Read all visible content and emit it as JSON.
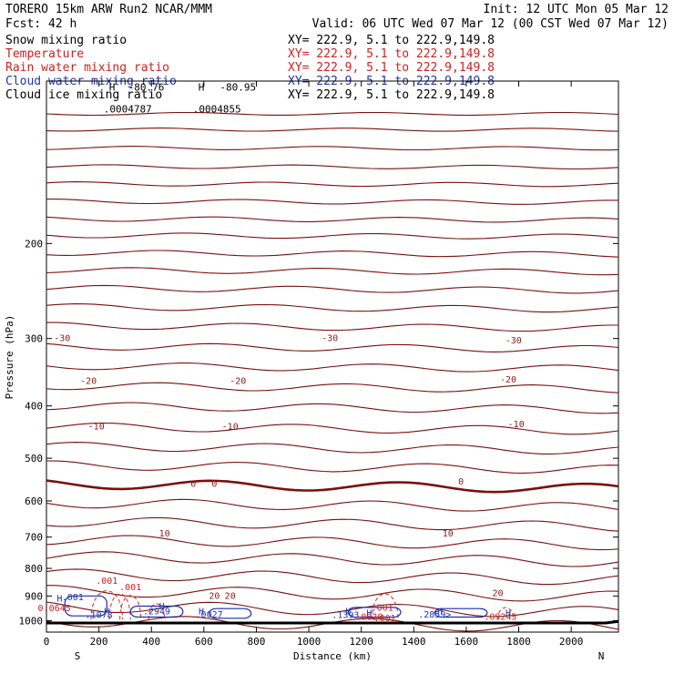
{
  "header": {
    "model": "TORERO  15km ARW   Run2   NCAR/MMM",
    "init": "Init: 12 UTC Mon 05 Mar 12",
    "fcst": "Fcst:   42 h",
    "valid": "Valid: 06 UTC Wed 07 Mar 12 (00 CST Wed 07 Mar 12)"
  },
  "legend": [
    {
      "name": "Snow mixing ratio",
      "xy": "XY= 222.9,  5.1 to 222.9,149.8",
      "color": "#000000"
    },
    {
      "name": "Temperature",
      "xy": "XY= 222.9,  5.1 to 222.9,149.8",
      "color": "#cc2222"
    },
    {
      "name": "Rain water mixing ratio",
      "xy": "XY= 222.9,  5.1 to 222.9,149.8",
      "color": "#cc2222"
    },
    {
      "name": "Cloud water mixing ratio",
      "xy": "XY= 222.9,  5.1 to 222.9,149.8",
      "color": "#2233aa"
    },
    {
      "name": "Cloud ice mixing ratio",
      "xy": "XY= 222.9,  5.1 to 222.9,149.8",
      "color": "#000000"
    }
  ],
  "chart_data": {
    "type": "line",
    "xlabel": "Distance (km)",
    "ylabel": "Pressure (hPa)",
    "xlim": [
      0,
      2180
    ],
    "ylim": [
      1050,
      100
    ],
    "yscale": "log",
    "xticks": [
      0,
      200,
      400,
      600,
      800,
      1000,
      1200,
      1400,
      1600,
      1800,
      2000
    ],
    "yticks": [
      200,
      300,
      400,
      500,
      600,
      700,
      800,
      900,
      1000
    ],
    "x_end_labels": [
      "S",
      "N"
    ],
    "colors": {
      "temperature": "#7a1010",
      "rain": "#dd2222",
      "cloud_water": "#1a2fb0",
      "terrain": "#000000"
    },
    "temperature_isotherms_pressure": [
      115,
      123,
      133,
      144,
      155,
      167,
      180,
      193,
      208,
      224,
      242,
      262,
      284,
      310,
      337,
      367,
      400,
      437,
      475,
      515,
      558,
      605,
      655,
      708,
      760,
      820,
      880,
      940,
      1000
    ],
    "temperature_labels": [
      {
        "text": "-30",
        "x": 60,
        "p": 300
      },
      {
        "text": "-30",
        "x": 1080,
        "p": 300
      },
      {
        "text": "-30",
        "x": 1780,
        "p": 303
      },
      {
        "text": "-20",
        "x": 160,
        "p": 360
      },
      {
        "text": "-20",
        "x": 730,
        "p": 360
      },
      {
        "text": "-20",
        "x": 1760,
        "p": 358
      },
      {
        "text": "-10",
        "x": 190,
        "p": 437
      },
      {
        "text": "-10",
        "x": 700,
        "p": 437
      },
      {
        "text": "-10",
        "x": 1790,
        "p": 433
      },
      {
        "text": "0",
        "x": 560,
        "p": 558
      },
      {
        "text": "0",
        "x": 640,
        "p": 558
      },
      {
        "text": "0",
        "x": 1580,
        "p": 553
      },
      {
        "text": "10",
        "x": 450,
        "p": 690
      },
      {
        "text": "10",
        "x": 1530,
        "p": 690
      },
      {
        "text": "20",
        "x": 640,
        "p": 900
      },
      {
        "text": "20",
        "x": 700,
        "p": 900
      },
      {
        "text": "20",
        "x": 1720,
        "p": 890
      }
    ],
    "rain_labels": [
      {
        "text": ".001",
        "x": 230,
        "p": 845
      },
      {
        "text": ".001",
        "x": 320,
        "p": 868
      },
      {
        "text": ".001",
        "x": 1280,
        "p": 948
      },
      {
        "text": ".001",
        "x": 1290,
        "p": 990
      },
      {
        "text": "0.0645",
        "x": 30,
        "p": 950
      },
      {
        "text": ".0620",
        "x": 1230,
        "p": 985
      },
      {
        "text": ".09245",
        "x": 1730,
        "p": 985
      }
    ],
    "cloud_water_labels": [
      {
        "text": ".001",
        "x": 100,
        "p": 905
      },
      {
        "text": ".1078",
        "x": 200,
        "p": 978
      },
      {
        "text": ".2949",
        "x": 420,
        "p": 962
      },
      {
        "text": ".1393",
        "x": 1140,
        "p": 978
      },
      {
        "text": ".2859>",
        "x": 1480,
        "p": 975
      },
      {
        "text": ".0027",
        "x": 620,
        "p": 975
      }
    ],
    "snow_ice_labels": [
      {
        "text": "H",
        "x": 250,
        "p": 103
      },
      {
        "text": "-80.76",
        "x": 380,
        "p": 103
      },
      {
        "text": "H",
        "x": 590,
        "p": 103
      },
      {
        "text": "-80.95",
        "x": 730,
        "p": 103
      },
      {
        "text": ".0004787",
        "x": 310,
        "p": 113
      },
      {
        "text": ".0004855",
        "x": 650,
        "p": 113
      }
    ],
    "h_markers": [
      {
        "text": "H",
        "x": 50,
        "p": 912
      },
      {
        "text": "H",
        "x": 230,
        "p": 962
      },
      {
        "text": "H",
        "x": 440,
        "p": 942
      },
      {
        "text": "H",
        "x": 590,
        "p": 962
      },
      {
        "text": "H",
        "x": 1150,
        "p": 962
      },
      {
        "text": "H",
        "x": 1230,
        "p": 970
      },
      {
        "text": "H",
        "x": 1500,
        "p": 962
      },
      {
        "text": "H",
        "x": 1760,
        "p": 970
      }
    ]
  }
}
